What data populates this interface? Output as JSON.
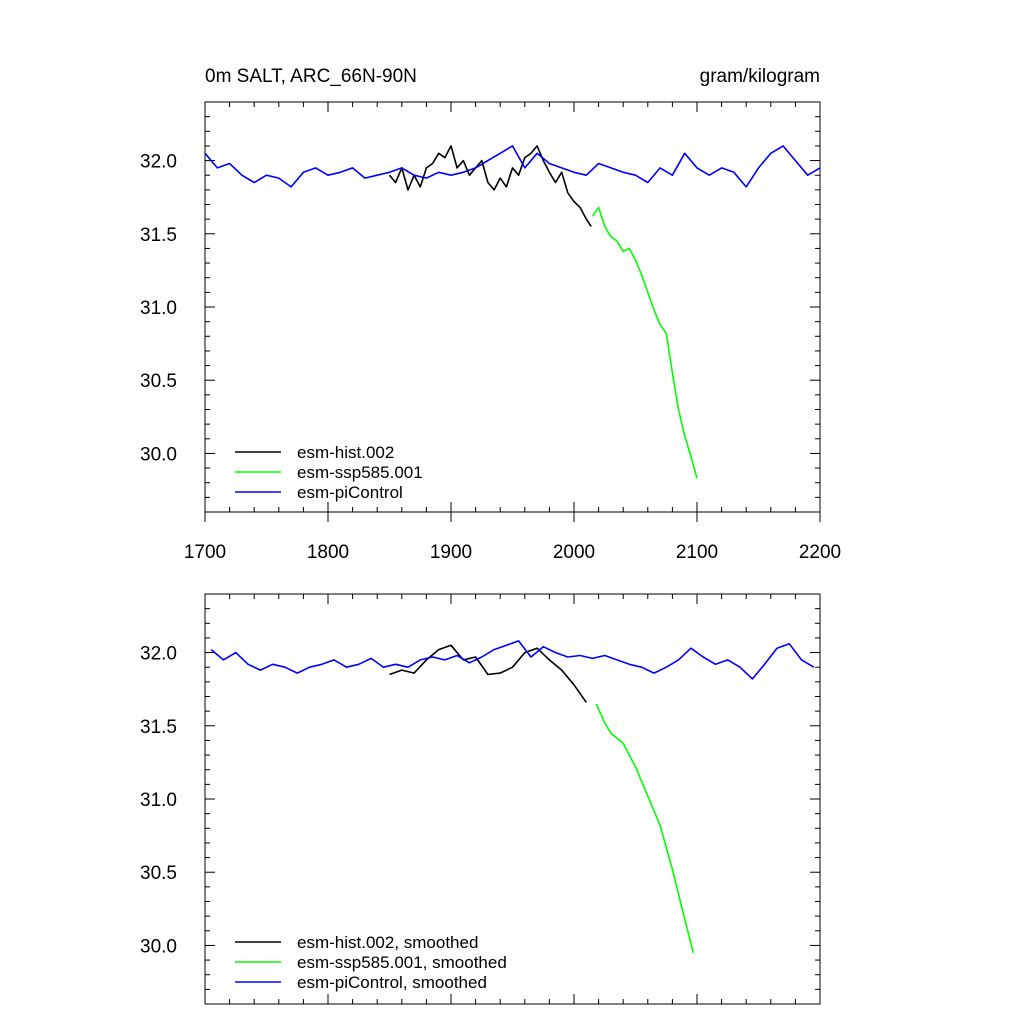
{
  "chart_data": [
    {
      "type": "line",
      "panel": "top",
      "title_left": "0m SALT, ARC_66N-90N",
      "title_right": "gram/kilogram",
      "xlim": [
        1700,
        2200
      ],
      "ylim": [
        29.6,
        32.4
      ],
      "x_ticks": [
        1700,
        1800,
        1900,
        2000,
        2100,
        2200
      ],
      "x_tick_labels": [
        "1700",
        "1800",
        "1900",
        "2000",
        "2100",
        "2200"
      ],
      "y_ticks": [
        30.0,
        30.5,
        31.0,
        31.5,
        32.0
      ],
      "y_tick_labels": [
        "30.0",
        "30.5",
        "31.0",
        "31.5",
        "32.0"
      ],
      "grid": false,
      "legend_position": "bottom-left",
      "series": [
        {
          "name": "esm-hist.002",
          "color": "#000000",
          "x": [
            1850,
            1855,
            1860,
            1865,
            1870,
            1875,
            1880,
            1885,
            1890,
            1895,
            1900,
            1905,
            1910,
            1915,
            1920,
            1925,
            1930,
            1935,
            1940,
            1945,
            1950,
            1955,
            1960,
            1965,
            1970,
            1975,
            1980,
            1985,
            1990,
            1995,
            2000,
            2005,
            2010,
            2014
          ],
          "y": [
            31.9,
            31.85,
            31.95,
            31.8,
            31.9,
            31.82,
            31.95,
            31.98,
            32.05,
            32.02,
            32.1,
            31.95,
            32.0,
            31.9,
            31.95,
            32.0,
            31.85,
            31.8,
            31.88,
            31.82,
            31.95,
            31.9,
            32.02,
            32.05,
            32.1,
            32.0,
            31.92,
            31.85,
            31.92,
            31.78,
            31.72,
            31.68,
            31.6,
            31.55
          ]
        },
        {
          "name": "esm-ssp585.001",
          "color": "#00ff00",
          "x": [
            2015,
            2020,
            2025,
            2030,
            2035,
            2040,
            2045,
            2050,
            2055,
            2060,
            2065,
            2070,
            2075,
            2080,
            2085,
            2090,
            2095,
            2100
          ],
          "y": [
            31.62,
            31.68,
            31.55,
            31.48,
            31.45,
            31.38,
            31.4,
            31.32,
            31.22,
            31.1,
            30.98,
            30.88,
            30.82,
            30.55,
            30.3,
            30.12,
            29.98,
            29.83
          ]
        },
        {
          "name": "esm-piControl",
          "color": "#0000ff",
          "x": [
            1700,
            1710,
            1720,
            1730,
            1740,
            1750,
            1760,
            1770,
            1780,
            1790,
            1800,
            1810,
            1820,
            1830,
            1840,
            1850,
            1860,
            1870,
            1880,
            1890,
            1900,
            1910,
            1920,
            1930,
            1940,
            1950,
            1960,
            1970,
            1980,
            1990,
            2000,
            2010,
            2020,
            2030,
            2040,
            2050,
            2060,
            2070,
            2080,
            2090,
            2100,
            2110,
            2120,
            2130,
            2140,
            2150,
            2160,
            2170,
            2180,
            2190,
            2200
          ],
          "y": [
            32.05,
            31.95,
            31.98,
            31.9,
            31.85,
            31.9,
            31.88,
            31.82,
            31.92,
            31.95,
            31.9,
            31.92,
            31.95,
            31.88,
            31.9,
            31.92,
            31.95,
            31.9,
            31.88,
            31.92,
            31.9,
            31.92,
            31.95,
            32.0,
            32.05,
            32.1,
            31.95,
            32.05,
            31.98,
            31.95,
            31.92,
            31.9,
            31.98,
            31.95,
            31.92,
            31.9,
            31.85,
            31.95,
            31.9,
            32.05,
            31.95,
            31.9,
            31.95,
            31.92,
            31.82,
            31.95,
            32.05,
            32.1,
            32.0,
            31.9,
            31.95
          ]
        }
      ]
    },
    {
      "type": "line",
      "panel": "bottom",
      "xlim": [
        1700,
        2200
      ],
      "ylim": [
        29.6,
        32.4
      ],
      "y_ticks": [
        30.0,
        30.5,
        31.0,
        31.5,
        32.0
      ],
      "y_tick_labels": [
        "30.0",
        "30.5",
        "31.0",
        "31.5",
        "32.0"
      ],
      "grid": false,
      "legend_position": "bottom-left",
      "series": [
        {
          "name": "esm-hist.002, smoothed",
          "color": "#000000",
          "x": [
            1850,
            1860,
            1870,
            1880,
            1890,
            1900,
            1910,
            1920,
            1930,
            1940,
            1950,
            1960,
            1970,
            1980,
            1990,
            2000,
            2010
          ],
          "y": [
            31.85,
            31.88,
            31.86,
            31.95,
            32.02,
            32.05,
            31.95,
            31.97,
            31.85,
            31.86,
            31.9,
            32.0,
            32.03,
            31.95,
            31.88,
            31.78,
            31.66
          ]
        },
        {
          "name": "esm-ssp585.001, smoothed",
          "color": "#00ff00",
          "x": [
            2018,
            2025,
            2030,
            2040,
            2050,
            2060,
            2070,
            2080,
            2090,
            2097
          ],
          "y": [
            31.65,
            31.52,
            31.45,
            31.38,
            31.22,
            31.02,
            30.82,
            30.52,
            30.18,
            29.95
          ]
        },
        {
          "name": "esm-piControl, smoothed",
          "color": "#0000ff",
          "x": [
            1705,
            1715,
            1725,
            1735,
            1745,
            1755,
            1765,
            1775,
            1785,
            1795,
            1805,
            1815,
            1825,
            1835,
            1845,
            1855,
            1865,
            1875,
            1885,
            1895,
            1905,
            1915,
            1925,
            1935,
            1945,
            1955,
            1965,
            1975,
            1985,
            1995,
            2005,
            2015,
            2025,
            2035,
            2045,
            2055,
            2065,
            2075,
            2085,
            2095,
            2105,
            2115,
            2125,
            2135,
            2145,
            2155,
            2165,
            2175,
            2185,
            2195
          ],
          "y": [
            32.02,
            31.95,
            32.0,
            31.92,
            31.88,
            31.92,
            31.9,
            31.86,
            31.9,
            31.92,
            31.95,
            31.9,
            31.92,
            31.96,
            31.9,
            31.92,
            31.9,
            31.95,
            31.97,
            31.95,
            31.98,
            31.93,
            31.97,
            32.02,
            32.05,
            32.08,
            31.97,
            32.04,
            32.0,
            31.97,
            31.98,
            31.96,
            31.98,
            31.95,
            31.92,
            31.9,
            31.86,
            31.9,
            31.95,
            32.03,
            31.97,
            31.92,
            31.95,
            31.9,
            31.82,
            31.92,
            32.03,
            32.06,
            31.95,
            31.9
          ]
        }
      ]
    }
  ]
}
